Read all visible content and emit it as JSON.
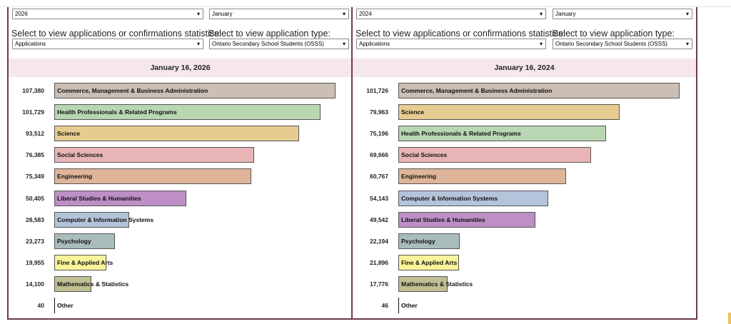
{
  "controls_label_stats": "Select to view applications or confirmations statistics:",
  "controls_label_type": "Select to view application type:",
  "chart_data": [
    {
      "type": "bar",
      "orientation": "horizontal",
      "title": "January 16, 2026",
      "year": "2026",
      "month": "January",
      "stat": "Applications",
      "app_type": "Ontario Secondary School Students (OSSS)",
      "categories": [
        "Commerce, Management & Business Administration",
        "Health Professionals & Related Programs",
        "Science",
        "Social Sciences",
        "Engineering",
        "Liberal Studies & Humanities",
        "Computer & Information Systems",
        "Psychology",
        "Fine & Applied Arts",
        "Mathematics & Statistics",
        "Other"
      ],
      "values": [
        107380,
        101729,
        93512,
        76385,
        75349,
        50405,
        28583,
        23273,
        19955,
        14100,
        40
      ],
      "labels": [
        "107,380",
        "101,729",
        "93,512",
        "76,385",
        "75,349",
        "50,405",
        "28,583",
        "23,273",
        "19,955",
        "14,100",
        "40"
      ]
    },
    {
      "type": "bar",
      "orientation": "horizontal",
      "title": "January 16, 2024",
      "year": "2024",
      "month": "January",
      "stat": "Applications",
      "app_type": "Ontario Secondary School Students (OSSS)",
      "categories": [
        "Commerce, Management & Business Administration",
        "Science",
        "Health Professionals & Related Programs",
        "Social Sciences",
        "Engineering",
        "Computer & Information Systems",
        "Liberal Studies & Humanities",
        "Psychology",
        "Fine & Applied Arts",
        "Mathematics & Statistics",
        "Other"
      ],
      "values": [
        101726,
        79963,
        75196,
        69666,
        60767,
        54143,
        49542,
        22194,
        21896,
        17776,
        46
      ],
      "labels": [
        "101,726",
        "79,963",
        "75,196",
        "69,666",
        "60,767",
        "54,143",
        "49,542",
        "22,194",
        "21,896",
        "17,776",
        "46"
      ]
    }
  ],
  "colors": {
    "Commerce, Management & Business Administration": "#cbbfb5",
    "Health Professionals & Related Programs": "#b9d6b3",
    "Science": "#e6cc91",
    "Social Sciences": "#e8b4b6",
    "Engineering": "#dfb59a",
    "Liberal Studies & Humanities": "#be8fc6",
    "Computer & Information Systems": "#b3c3d9",
    "Psychology": "#a9bcbc",
    "Fine & Applied Arts": "#f9f39a",
    "Mathematics & Statistics": "#bfbf94",
    "Other": "#ffffff"
  }
}
